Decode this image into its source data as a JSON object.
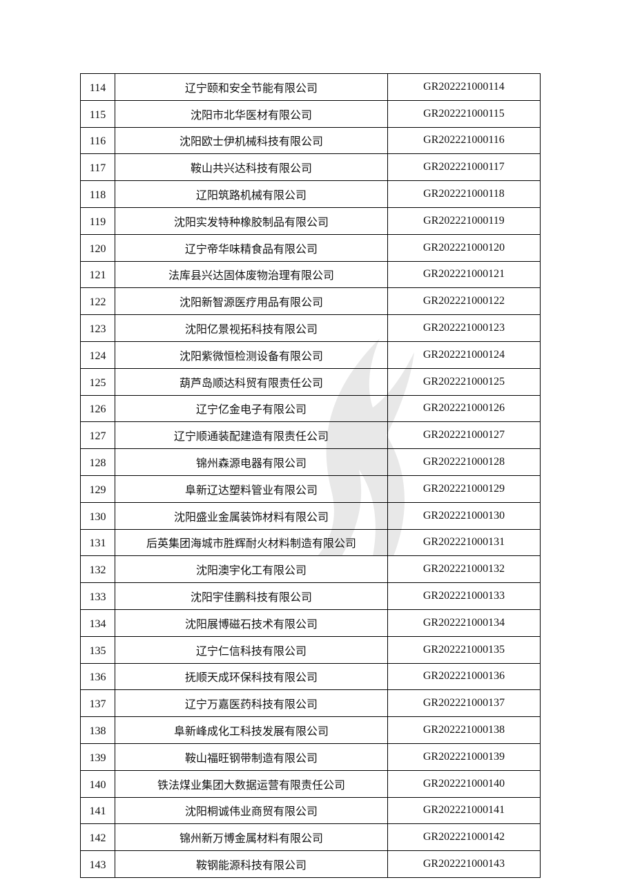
{
  "table": {
    "rows": [
      {
        "no": "114",
        "name": "辽宁颐和安全节能有限公司",
        "code": "GR202221000114"
      },
      {
        "no": "115",
        "name": "沈阳市北华医材有限公司",
        "code": "GR202221000115"
      },
      {
        "no": "116",
        "name": "沈阳欧士伊机械科技有限公司",
        "code": "GR202221000116"
      },
      {
        "no": "117",
        "name": "鞍山共兴达科技有限公司",
        "code": "GR202221000117"
      },
      {
        "no": "118",
        "name": "辽阳筑路机械有限公司",
        "code": "GR202221000118"
      },
      {
        "no": "119",
        "name": "沈阳实发特种橡胶制品有限公司",
        "code": "GR202221000119"
      },
      {
        "no": "120",
        "name": "辽宁帝华味精食品有限公司",
        "code": "GR202221000120"
      },
      {
        "no": "121",
        "name": "法库县兴达固体废物治理有限公司",
        "code": "GR202221000121"
      },
      {
        "no": "122",
        "name": "沈阳新智源医疗用品有限公司",
        "code": "GR202221000122"
      },
      {
        "no": "123",
        "name": "沈阳亿景视拓科技有限公司",
        "code": "GR202221000123"
      },
      {
        "no": "124",
        "name": "沈阳紫微恒检测设备有限公司",
        "code": "GR202221000124"
      },
      {
        "no": "125",
        "name": "葫芦岛顺达科贸有限责任公司",
        "code": "GR202221000125"
      },
      {
        "no": "126",
        "name": "辽宁亿金电子有限公司",
        "code": "GR202221000126"
      },
      {
        "no": "127",
        "name": "辽宁顺通装配建造有限责任公司",
        "code": "GR202221000127"
      },
      {
        "no": "128",
        "name": "锦州森源电器有限公司",
        "code": "GR202221000128"
      },
      {
        "no": "129",
        "name": "阜新辽达塑料管业有限公司",
        "code": "GR202221000129"
      },
      {
        "no": "130",
        "name": "沈阳盛业金属装饰材料有限公司",
        "code": "GR202221000130"
      },
      {
        "no": "131",
        "name": "后英集团海城市胜辉耐火材料制造有限公司",
        "code": "GR202221000131"
      },
      {
        "no": "132",
        "name": "沈阳澳宇化工有限公司",
        "code": "GR202221000132"
      },
      {
        "no": "133",
        "name": "沈阳宇佳鹏科技有限公司",
        "code": "GR202221000133"
      },
      {
        "no": "134",
        "name": "沈阳展博磁石技术有限公司",
        "code": "GR202221000134"
      },
      {
        "no": "135",
        "name": "辽宁仁信科技有限公司",
        "code": "GR202221000135"
      },
      {
        "no": "136",
        "name": "抚顺天成环保科技有限公司",
        "code": "GR202221000136"
      },
      {
        "no": "137",
        "name": "辽宁万嘉医药科技有限公司",
        "code": "GR202221000137"
      },
      {
        "no": "138",
        "name": "阜新峰成化工科技发展有限公司",
        "code": "GR202221000138"
      },
      {
        "no": "139",
        "name": "鞍山福旺钢带制造有限公司",
        "code": "GR202221000139"
      },
      {
        "no": "140",
        "name": "铁法煤业集团大数据运营有限责任公司",
        "code": "GR202221000140"
      },
      {
        "no": "141",
        "name": "沈阳桐诚伟业商贸有限公司",
        "code": "GR202221000141"
      },
      {
        "no": "142",
        "name": "锦州新万博金属材料有限公司",
        "code": "GR202221000142"
      },
      {
        "no": "143",
        "name": "鞍钢能源科技有限公司",
        "code": "GR202221000143"
      }
    ]
  },
  "watermark": {
    "icon": "flame-watermark-icon",
    "color": "#e6e6e6"
  }
}
